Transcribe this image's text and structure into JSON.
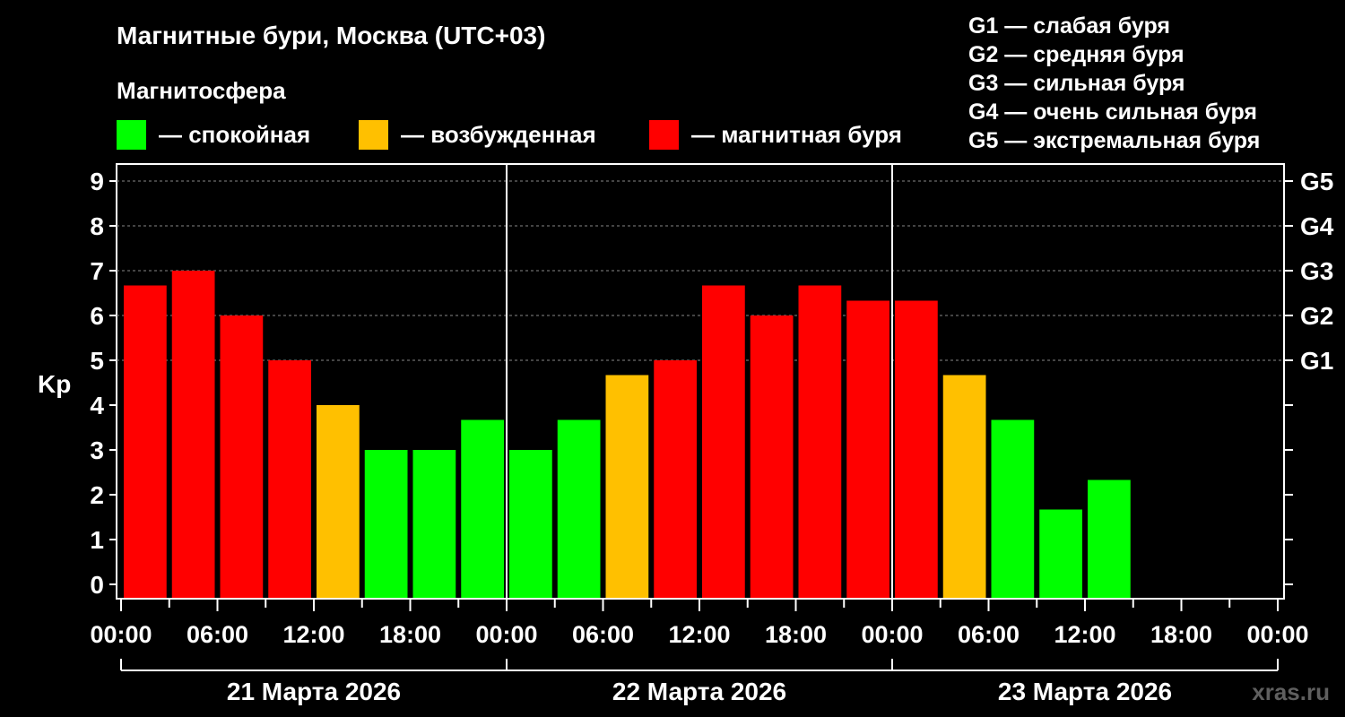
{
  "chart_data": {
    "type": "bar",
    "title": "Магнитные бури, Москва (UTC+03)",
    "legend_title": "Магнитосфера",
    "legend": [
      {
        "label": "— спокойная",
        "color": "#00ff00"
      },
      {
        "label": "— возбужденная",
        "color": "#ffc000"
      },
      {
        "label": "— магнитная буря",
        "color": "#ff0000"
      }
    ],
    "g_scale": [
      "G1 — слабая буря",
      "G2 — средняя буря",
      "G3 — сильная буря",
      "G4 — очень сильная буря",
      "G5 — экстремальная буря"
    ],
    "ylabel": "Kp",
    "ylim": [
      0,
      9
    ],
    "yticks": [
      "0",
      "1",
      "2",
      "3",
      "4",
      "5",
      "6",
      "7",
      "8",
      "9"
    ],
    "right_ticks": [
      {
        "value": 5,
        "label": "G1"
      },
      {
        "value": 6,
        "label": "G2"
      },
      {
        "value": 7,
        "label": "G3"
      },
      {
        "value": 8,
        "label": "G4"
      },
      {
        "value": 9,
        "label": "G5"
      }
    ],
    "xticks": [
      "00:00",
      "06:00",
      "12:00",
      "18:00",
      "00:00",
      "06:00",
      "12:00",
      "18:00",
      "00:00",
      "06:00",
      "12:00",
      "18:00",
      "00:00"
    ],
    "days": [
      "21 Марта 2026",
      "22 Марта 2026",
      "23 Марта 2026"
    ],
    "slots_total": 24,
    "values": [
      6.67,
      7,
      6,
      5,
      4,
      3,
      3,
      3.67,
      3,
      3.67,
      4.67,
      5,
      6.67,
      6,
      6.67,
      6.33,
      6.33,
      4.67,
      3.67,
      1.67,
      2.33
    ],
    "colors": {
      "quiet": "#00ff00",
      "active": "#ffc000",
      "storm": "#ff0000"
    },
    "grid": "dashed"
  },
  "watermark": "xras.ru"
}
